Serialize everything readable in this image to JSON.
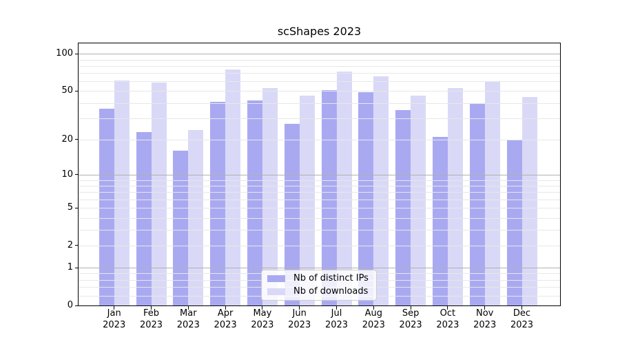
{
  "title": "scShapes 2023",
  "chart_data": {
    "type": "bar",
    "title": "scShapes 2023",
    "categories": [
      "Jan 2023",
      "Feb 2023",
      "Mar 2023",
      "Apr 2023",
      "May 2023",
      "Jun 2023",
      "Jul 2023",
      "Aug 2023",
      "Sep 2023",
      "Oct 2023",
      "Nov 2023",
      "Dec 2023"
    ],
    "series": [
      {
        "name": "Nb of distinct IPs",
        "color": "#a9a9f2",
        "values": [
          36,
          23,
          16,
          41,
          42,
          27,
          51,
          49,
          35,
          21,
          40,
          20
        ]
      },
      {
        "name": "Nb of downloads",
        "color": "#d9d9f7",
        "values": [
          61,
          59,
          24,
          75,
          53,
          46,
          72,
          66,
          46,
          53,
          60,
          45
        ]
      }
    ],
    "yscale": "log1p",
    "ylim": [
      0,
      121.5
    ],
    "y_major_ticks": [
      0,
      1,
      2,
      5,
      10,
      20,
      50,
      100
    ],
    "y_major_gridlines": [
      1,
      10,
      100
    ],
    "y_minor_gridlines": [
      0.2,
      0.4,
      0.6,
      0.8,
      2,
      3,
      4,
      5,
      6,
      7,
      8,
      9,
      20,
      30,
      40,
      50,
      60,
      70,
      80,
      90
    ],
    "grid": true,
    "grid_major_color": "#b0b0b0",
    "grid_minor_color": "#e7e7e7",
    "legend_position": "lower center",
    "xlabel": "",
    "ylabel": ""
  }
}
